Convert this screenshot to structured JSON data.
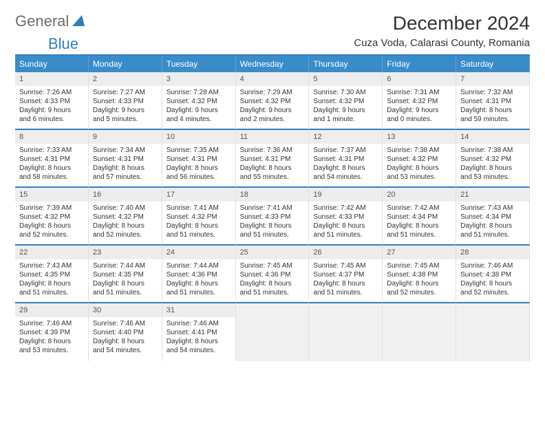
{
  "logo": {
    "word1": "General",
    "word2": "Blue"
  },
  "title": "December 2024",
  "location": "Cuza Voda, Calarasi County, Romania",
  "colors": {
    "header_bg": "#3a8cc9",
    "accent": "#2f7fc0",
    "daynum_bg": "#ededed",
    "text": "#333333",
    "logo_gray": "#6b6b6b"
  },
  "dayNames": [
    "Sunday",
    "Monday",
    "Tuesday",
    "Wednesday",
    "Thursday",
    "Friday",
    "Saturday"
  ],
  "days": [
    {
      "n": "1",
      "sr": "7:26 AM",
      "ss": "4:33 PM",
      "dl": "9 hours and 6 minutes."
    },
    {
      "n": "2",
      "sr": "7:27 AM",
      "ss": "4:33 PM",
      "dl": "9 hours and 5 minutes."
    },
    {
      "n": "3",
      "sr": "7:28 AM",
      "ss": "4:32 PM",
      "dl": "9 hours and 4 minutes."
    },
    {
      "n": "4",
      "sr": "7:29 AM",
      "ss": "4:32 PM",
      "dl": "9 hours and 2 minutes."
    },
    {
      "n": "5",
      "sr": "7:30 AM",
      "ss": "4:32 PM",
      "dl": "9 hours and 1 minute."
    },
    {
      "n": "6",
      "sr": "7:31 AM",
      "ss": "4:32 PM",
      "dl": "9 hours and 0 minutes."
    },
    {
      "n": "7",
      "sr": "7:32 AM",
      "ss": "4:31 PM",
      "dl": "8 hours and 59 minutes."
    },
    {
      "n": "8",
      "sr": "7:33 AM",
      "ss": "4:31 PM",
      "dl": "8 hours and 58 minutes."
    },
    {
      "n": "9",
      "sr": "7:34 AM",
      "ss": "4:31 PM",
      "dl": "8 hours and 57 minutes."
    },
    {
      "n": "10",
      "sr": "7:35 AM",
      "ss": "4:31 PM",
      "dl": "8 hours and 56 minutes."
    },
    {
      "n": "11",
      "sr": "7:36 AM",
      "ss": "4:31 PM",
      "dl": "8 hours and 55 minutes."
    },
    {
      "n": "12",
      "sr": "7:37 AM",
      "ss": "4:31 PM",
      "dl": "8 hours and 54 minutes."
    },
    {
      "n": "13",
      "sr": "7:38 AM",
      "ss": "4:32 PM",
      "dl": "8 hours and 53 minutes."
    },
    {
      "n": "14",
      "sr": "7:38 AM",
      "ss": "4:32 PM",
      "dl": "8 hours and 53 minutes."
    },
    {
      "n": "15",
      "sr": "7:39 AM",
      "ss": "4:32 PM",
      "dl": "8 hours and 52 minutes."
    },
    {
      "n": "16",
      "sr": "7:40 AM",
      "ss": "4:32 PM",
      "dl": "8 hours and 52 minutes."
    },
    {
      "n": "17",
      "sr": "7:41 AM",
      "ss": "4:32 PM",
      "dl": "8 hours and 51 minutes."
    },
    {
      "n": "18",
      "sr": "7:41 AM",
      "ss": "4:33 PM",
      "dl": "8 hours and 51 minutes."
    },
    {
      "n": "19",
      "sr": "7:42 AM",
      "ss": "4:33 PM",
      "dl": "8 hours and 51 minutes."
    },
    {
      "n": "20",
      "sr": "7:42 AM",
      "ss": "4:34 PM",
      "dl": "8 hours and 51 minutes."
    },
    {
      "n": "21",
      "sr": "7:43 AM",
      "ss": "4:34 PM",
      "dl": "8 hours and 51 minutes."
    },
    {
      "n": "22",
      "sr": "7:43 AM",
      "ss": "4:35 PM",
      "dl": "8 hours and 51 minutes."
    },
    {
      "n": "23",
      "sr": "7:44 AM",
      "ss": "4:35 PM",
      "dl": "8 hours and 51 minutes."
    },
    {
      "n": "24",
      "sr": "7:44 AM",
      "ss": "4:36 PM",
      "dl": "8 hours and 51 minutes."
    },
    {
      "n": "25",
      "sr": "7:45 AM",
      "ss": "4:36 PM",
      "dl": "8 hours and 51 minutes."
    },
    {
      "n": "26",
      "sr": "7:45 AM",
      "ss": "4:37 PM",
      "dl": "8 hours and 51 minutes."
    },
    {
      "n": "27",
      "sr": "7:45 AM",
      "ss": "4:38 PM",
      "dl": "8 hours and 52 minutes."
    },
    {
      "n": "28",
      "sr": "7:46 AM",
      "ss": "4:38 PM",
      "dl": "8 hours and 52 minutes."
    },
    {
      "n": "29",
      "sr": "7:46 AM",
      "ss": "4:39 PM",
      "dl": "8 hours and 53 minutes."
    },
    {
      "n": "30",
      "sr": "7:46 AM",
      "ss": "4:40 PM",
      "dl": "8 hours and 54 minutes."
    },
    {
      "n": "31",
      "sr": "7:46 AM",
      "ss": "4:41 PM",
      "dl": "8 hours and 54 minutes."
    }
  ],
  "labels": {
    "sunrise": "Sunrise:",
    "sunset": "Sunset:",
    "daylight": "Daylight:"
  }
}
